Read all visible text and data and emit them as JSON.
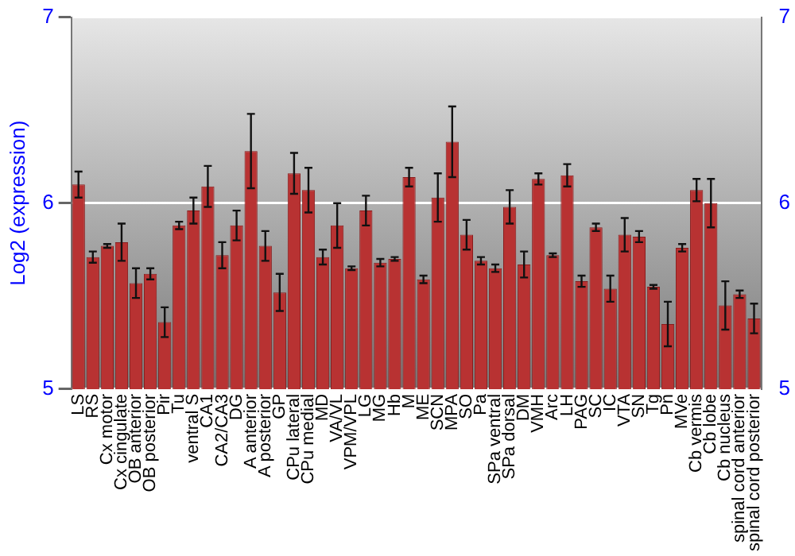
{
  "chart_data": {
    "type": "bar",
    "ylabel": "Log2 (expression)",
    "categories": [
      "LS",
      "RS",
      "Cx motor",
      "Cx cingulate",
      "OB anterior",
      "OB posterior",
      "Pir",
      "Tu",
      "ventral S",
      "CA1",
      "CA2/CA3",
      "DG",
      "A anterior",
      "A posterior",
      "GP",
      "CPu lateral",
      "CPu medial",
      "MD",
      "VA/VL",
      "VPM/VPL",
      "LG",
      "MG",
      "Hb",
      "M",
      "ME",
      "SCN",
      "MPA",
      "SO",
      "Pa",
      "SPa ventral",
      "SPa dorsal",
      "DM",
      "VMH",
      "Arc",
      "LH",
      "PAG",
      "SC",
      "IC",
      "VTA",
      "SN",
      "Tg",
      "Pn",
      "MVe",
      "Cb vermis",
      "Cb lobe",
      "Cb nucleus",
      "spinal cord anterior",
      "spinal cord posterior"
    ],
    "values": [
      6.1,
      5.71,
      5.77,
      5.79,
      5.57,
      5.62,
      5.36,
      5.88,
      5.96,
      6.09,
      5.72,
      5.88,
      6.28,
      5.77,
      5.52,
      6.16,
      6.07,
      5.71,
      5.88,
      5.65,
      5.96,
      5.68,
      5.7,
      6.14,
      5.59,
      6.03,
      6.33,
      5.83,
      5.69,
      5.65,
      5.98,
      5.67,
      6.13,
      5.72,
      6.15,
      5.58,
      5.87,
      5.54,
      5.83,
      5.82,
      5.55,
      5.35,
      5.76,
      6.07,
      6.0,
      5.45,
      5.51,
      5.38
    ],
    "errors": [
      0.07,
      0.03,
      0.01,
      0.1,
      0.08,
      0.03,
      0.08,
      0.02,
      0.07,
      0.11,
      0.07,
      0.08,
      0.2,
      0.08,
      0.1,
      0.11,
      0.12,
      0.04,
      0.12,
      0.01,
      0.08,
      0.02,
      0.01,
      0.05,
      0.02,
      0.13,
      0.19,
      0.08,
      0.02,
      0.02,
      0.09,
      0.07,
      0.03,
      0.01,
      0.06,
      0.03,
      0.02,
      0.07,
      0.09,
      0.03,
      0.01,
      0.12,
      0.02,
      0.06,
      0.13,
      0.13,
      0.02,
      0.08
    ],
    "color": "#b83232",
    "ylim": [
      5,
      7
    ],
    "yticks": [
      5,
      6,
      7
    ],
    "y2lim": [
      5,
      7
    ],
    "y2ticks": [
      5,
      6,
      7
    ],
    "grid": "y",
    "legend": false
  }
}
